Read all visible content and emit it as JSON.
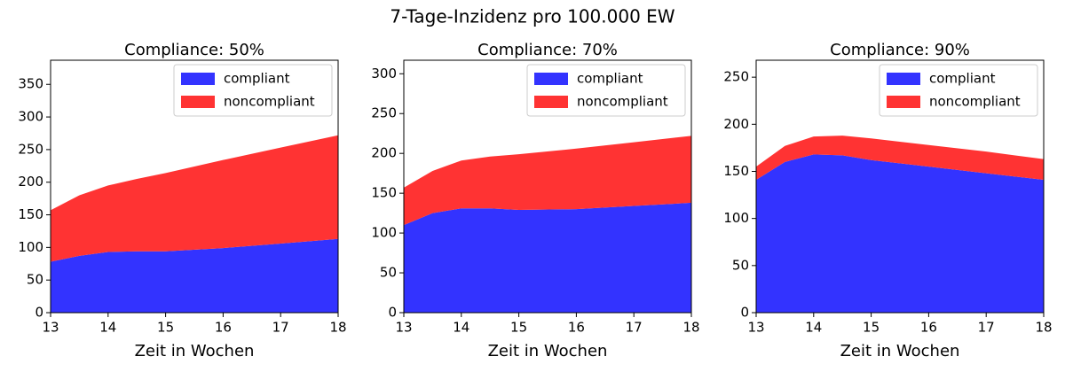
{
  "title": "7-Tage-Inzidenz pro 100.000 EW",
  "chart_data": [
    {
      "type": "stacked_area",
      "title": "Compliance: 50%",
      "x_label": "Zeit in Wochen",
      "x": [
        13,
        13.5,
        14,
        14.5,
        15,
        16,
        17,
        18
      ],
      "series": [
        {
          "name": "compliant",
          "color": "#3333ff",
          "values": [
            78,
            87,
            93,
            94,
            94,
            99,
            106,
            113
          ]
        },
        {
          "name": "noncompliant",
          "color": "#ff3333",
          "values": [
            79,
            93,
            102,
            111,
            120,
            135,
            147,
            159
          ]
        }
      ],
      "xlim": [
        13,
        18
      ],
      "xticks": [
        13,
        14,
        15,
        16,
        17,
        18
      ],
      "ylim": [
        0,
        387
      ],
      "yticks": [
        0,
        50,
        100,
        150,
        200,
        250,
        300,
        350
      ],
      "legend": "upper right"
    },
    {
      "type": "stacked_area",
      "title": "Compliance: 70%",
      "x_label": "Zeit in Wochen",
      "x": [
        13,
        13.5,
        14,
        14.5,
        15,
        16,
        17,
        18
      ],
      "series": [
        {
          "name": "compliant",
          "color": "#3333ff",
          "values": [
            110,
            125,
            131,
            131,
            129,
            130,
            134,
            138
          ]
        },
        {
          "name": "noncompliant",
          "color": "#ff3333",
          "values": [
            47,
            53,
            60,
            65,
            70,
            76,
            80,
            84
          ]
        }
      ],
      "xlim": [
        13,
        18
      ],
      "xticks": [
        13,
        14,
        15,
        16,
        17,
        18
      ],
      "ylim": [
        0,
        317
      ],
      "yticks": [
        0,
        50,
        100,
        150,
        200,
        250,
        300
      ],
      "legend": "upper right"
    },
    {
      "type": "stacked_area",
      "title": "Compliance: 90%",
      "x_label": "Zeit in Wochen",
      "x": [
        13,
        13.5,
        14,
        14.5,
        15,
        16,
        17,
        18
      ],
      "series": [
        {
          "name": "compliant",
          "color": "#3333ff",
          "values": [
            141,
            160,
            168,
            167,
            162,
            155,
            148,
            141
          ]
        },
        {
          "name": "noncompliant",
          "color": "#ff3333",
          "values": [
            14,
            17,
            19,
            21,
            23,
            23,
            23,
            22
          ]
        }
      ],
      "xlim": [
        13,
        18
      ],
      "xticks": [
        13,
        14,
        15,
        16,
        17,
        18
      ],
      "ylim": [
        0,
        268
      ],
      "yticks": [
        0,
        50,
        100,
        150,
        200,
        250
      ],
      "legend": "upper right"
    }
  ]
}
